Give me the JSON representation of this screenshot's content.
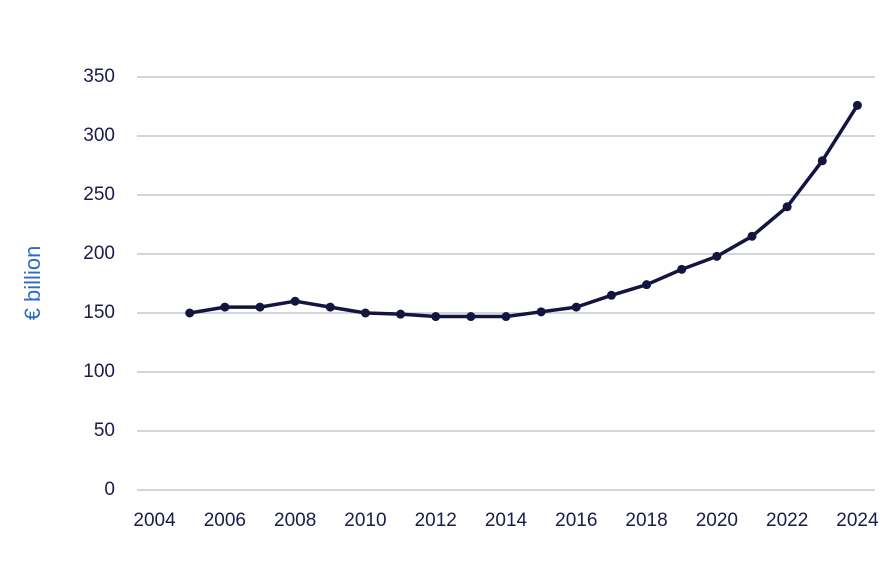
{
  "chart_data": {
    "type": "line",
    "y_label": "€ billion",
    "x": [
      2005,
      2006,
      2007,
      2008,
      2009,
      2010,
      2011,
      2012,
      2013,
      2014,
      2015,
      2016,
      2017,
      2018,
      2019,
      2020,
      2021,
      2022,
      2023,
      2024
    ],
    "series": [
      {
        "color": "#14143f",
        "values": [
          150,
          155,
          155,
          160,
          155,
          150,
          149,
          147,
          147,
          147,
          151,
          155,
          165,
          174,
          187,
          198,
          215,
          240,
          279,
          326
        ]
      }
    ],
    "xlim": [
      2003.5,
      2024.5
    ],
    "xticks": [
      2004,
      2006,
      2008,
      2010,
      2012,
      2014,
      2016,
      2018,
      2020,
      2022,
      2024
    ],
    "ylim": [
      0,
      350
    ],
    "yticks": [
      0,
      50,
      100,
      150,
      200,
      250,
      300,
      350
    ],
    "grid": true
  }
}
